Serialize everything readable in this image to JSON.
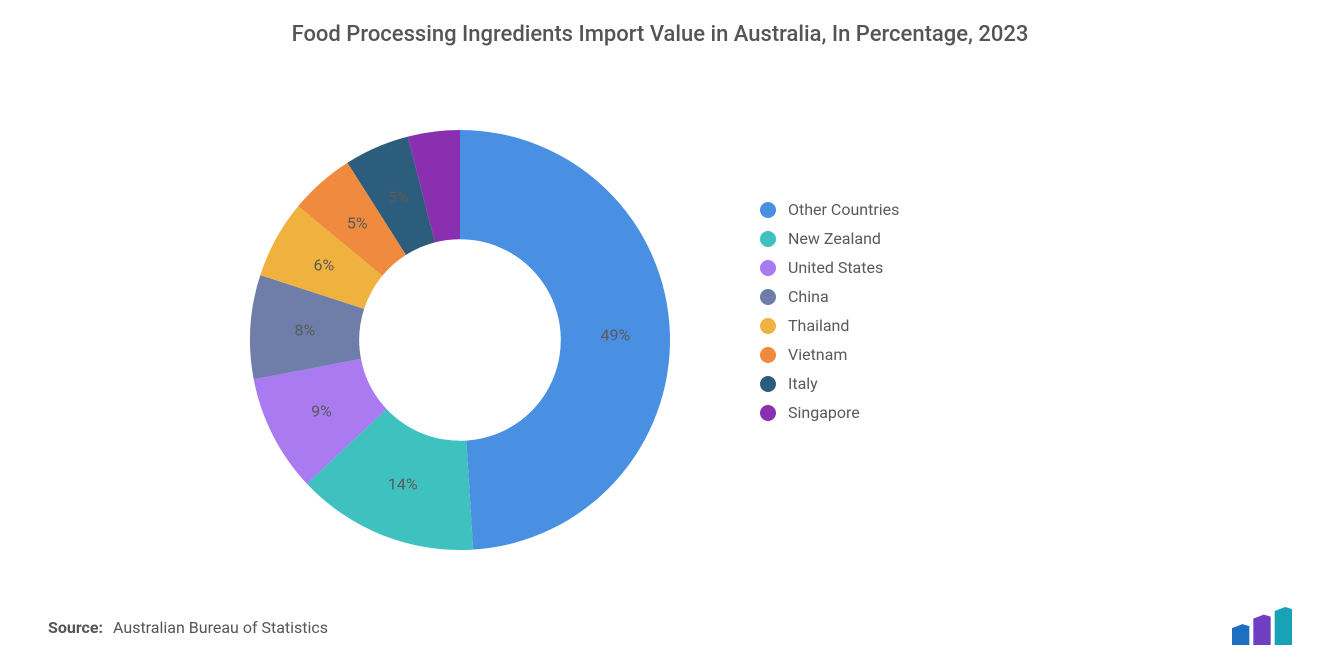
{
  "title": "Food Processing Ingredients Import Value in Australia, In Percentage, 2023",
  "source_label": "Source:",
  "source_value": "Australian Bureau of Statistics",
  "chart": {
    "type": "donut",
    "inner_radius_ratio": 0.48,
    "start_angle_deg": -90,
    "background_color": "#ffffff",
    "label_fontsize": 16,
    "label_color": "#5a5a5a",
    "slices": [
      {
        "name": "Other Countries",
        "value": 49,
        "color": "#4a90e2",
        "show_label": true
      },
      {
        "name": "New Zealand",
        "value": 14,
        "color": "#3fc1c0",
        "show_label": true
      },
      {
        "name": "United States",
        "value": 9,
        "color": "#a97af0",
        "show_label": true
      },
      {
        "name": "China",
        "value": 8,
        "color": "#6f7ea8",
        "show_label": true
      },
      {
        "name": "Thailand",
        "value": 6,
        "color": "#f0b23e",
        "show_label": true
      },
      {
        "name": "Vietnam",
        "value": 5,
        "color": "#f08a3e",
        "show_label": true
      },
      {
        "name": "Italy",
        "value": 5,
        "color": "#2d5d7c",
        "show_label": true
      },
      {
        "name": "Singapore",
        "value": 4,
        "color": "#8a2fb0",
        "show_label": false
      }
    ],
    "legend": {
      "marker_shape": "circle",
      "marker_size": 16,
      "fontsize": 16,
      "text_color": "#5a5a5a"
    }
  },
  "logo": {
    "bars": [
      {
        "color": "#1f6fc1",
        "height_ratio": 0.55
      },
      {
        "color": "#6f3fc1",
        "height_ratio": 0.8
      },
      {
        "color": "#17a2b8",
        "height_ratio": 1.0
      }
    ]
  }
}
